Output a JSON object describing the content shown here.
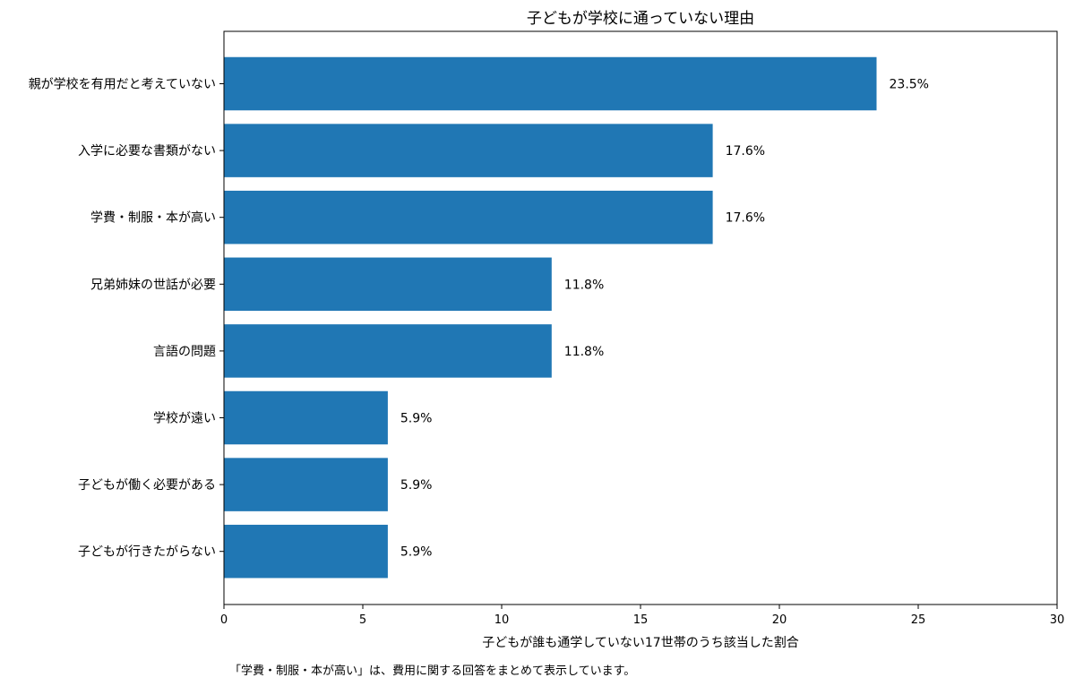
{
  "chart_data": {
    "type": "bar",
    "orientation": "horizontal",
    "title": "子どもが学校に通っていない理由",
    "xlabel": "子どもが誰も通学していない17世帯のうち該当した割合",
    "ylabel": "",
    "xlim": [
      0,
      30
    ],
    "xticks": [
      0,
      5,
      10,
      15,
      20,
      25,
      30
    ],
    "categories": [
      "親が学校を有用だと考えていない",
      "入学に必要な書類がない",
      "学費・制服・本が高い",
      "兄弟姉妹の世話が必要",
      "言語の問題",
      "学校が遠い",
      "子どもが働く必要がある",
      "子どもが行きたがらない"
    ],
    "values": [
      23.5,
      17.6,
      17.6,
      11.8,
      11.8,
      5.9,
      5.9,
      5.9
    ],
    "value_labels": [
      "23.5%",
      "17.6%",
      "17.6%",
      "11.8%",
      "11.8%",
      "5.9%",
      "5.9%",
      "5.9%"
    ],
    "bar_color": "#2077b4",
    "grid": false,
    "legend": "none"
  },
  "footnote": "「学費・制服・本が高い」は、費用に関する回答をまとめて表示しています。"
}
